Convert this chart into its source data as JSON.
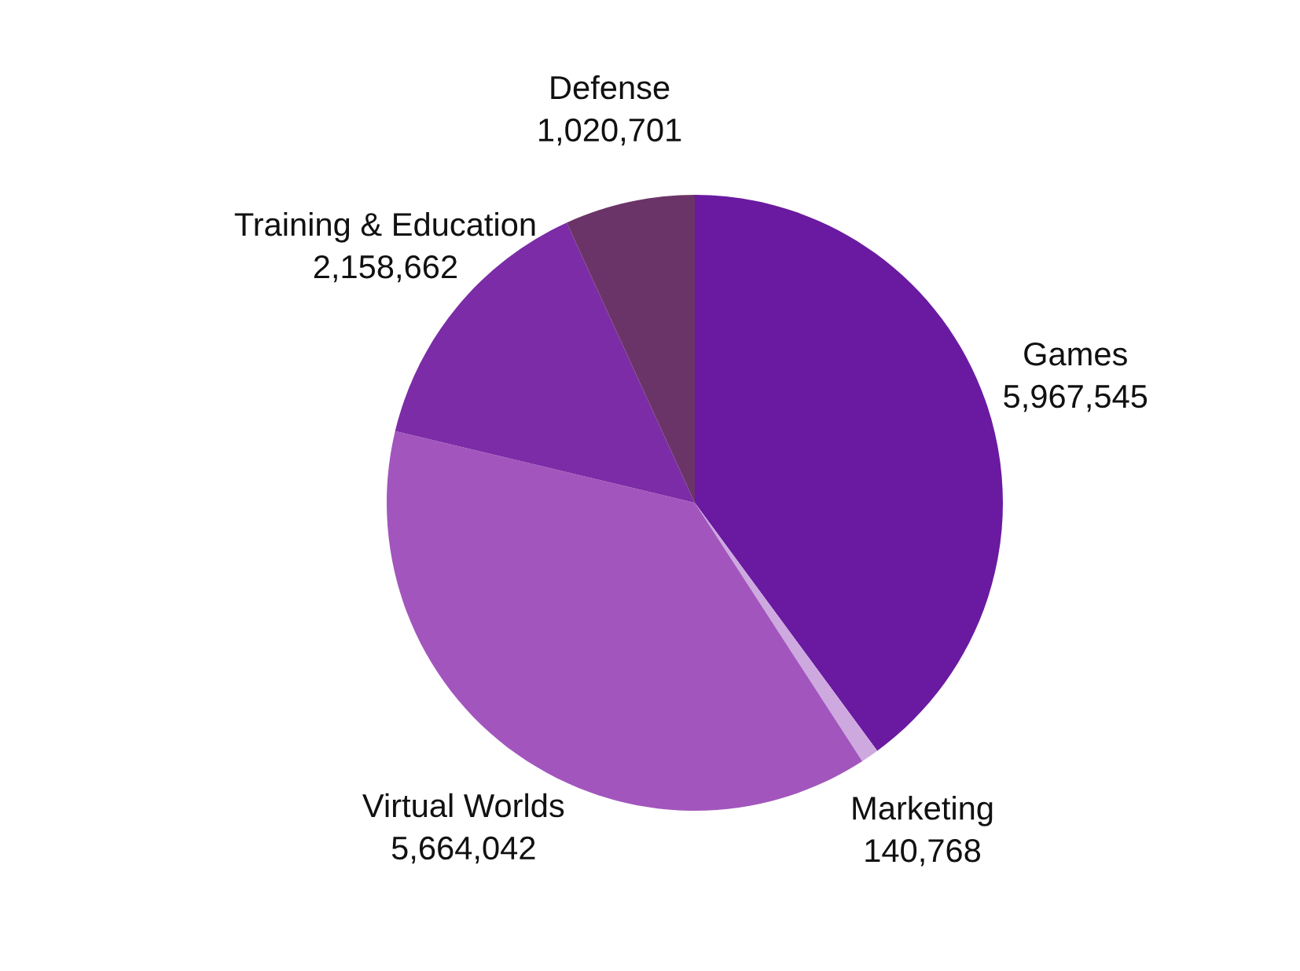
{
  "chart_data": {
    "type": "pie",
    "categories": [
      "Games",
      "Marketing",
      "Virtual Worlds",
      "Training & Education",
      "Defense"
    ],
    "values": [
      5967545,
      140768,
      5664042,
      2158662,
      1020701
    ],
    "colors": [
      "#6a1aa0",
      "#cda9e0",
      "#a256bd",
      "#7b2ca6",
      "#6b3468"
    ],
    "value_labels": [
      "5,967,545",
      "140,768",
      "5,664,042",
      "2,158,662",
      "1,020,701"
    ],
    "legend": false
  }
}
